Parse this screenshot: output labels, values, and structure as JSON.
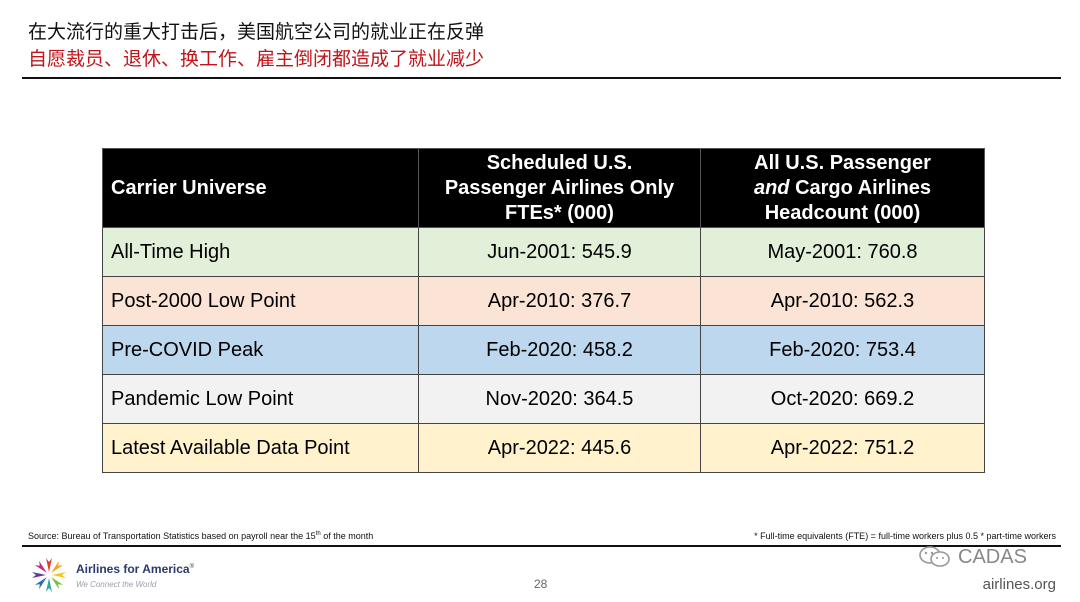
{
  "header": {
    "title": "在大流行的重大打击后，美国航空公司的就业正在反弹",
    "subtitle": "自愿裁员、退休、换工作、雇主倒闭都造成了就业减少"
  },
  "table": {
    "headers": {
      "col1": "Carrier Universe",
      "col2_line1": "Scheduled U.S.",
      "col2_line2": "Passenger Airlines Only",
      "col2_line3": "FTEs* (000)",
      "col3_line1": "All U.S. Passenger",
      "col3_line2_italic": "and",
      "col3_line2_rest": " Cargo Airlines",
      "col3_line3": "Headcount (000)"
    },
    "rows": [
      {
        "label": "All-Time High",
        "fte": "Jun-2001: 545.9",
        "headcount": "May-2001: 760.8",
        "color": "#e2efd9"
      },
      {
        "label": "Post-2000 Low Point",
        "fte": "Apr-2010: 376.7",
        "headcount": "Apr-2010: 562.3",
        "color": "#fbe4d5"
      },
      {
        "label": "Pre-COVID Peak",
        "fte": "Feb-2020: 458.2",
        "headcount": "Feb-2020: 753.4",
        "color": "#bdd7ee"
      },
      {
        "label": "Pandemic Low Point",
        "fte": "Nov-2020: 364.5",
        "headcount": "Oct-2020: 669.2",
        "color": "#f2f2f2"
      },
      {
        "label": "Latest Available Data Point",
        "fte": "Apr-2022: 445.6",
        "headcount": "Apr-2022: 751.2",
        "color": "#fff2cc"
      }
    ]
  },
  "footer": {
    "source_prefix": "Source: Bureau of Transportation Statistics based on payroll near the 15",
    "source_sup": "th",
    "source_suffix": " of the month",
    "fte_note": "* Full-time equivalents (FTE) = full-time workers plus 0.5 * part-time workers",
    "logo_name": "Airlines for America",
    "logo_mark": "®",
    "logo_tagline": "We Connect the World",
    "page_number": "28",
    "watermark": "CADAS",
    "website": "airlines.org"
  },
  "colors": {
    "title_red": "#c0161b",
    "header_black": "#000000"
  }
}
